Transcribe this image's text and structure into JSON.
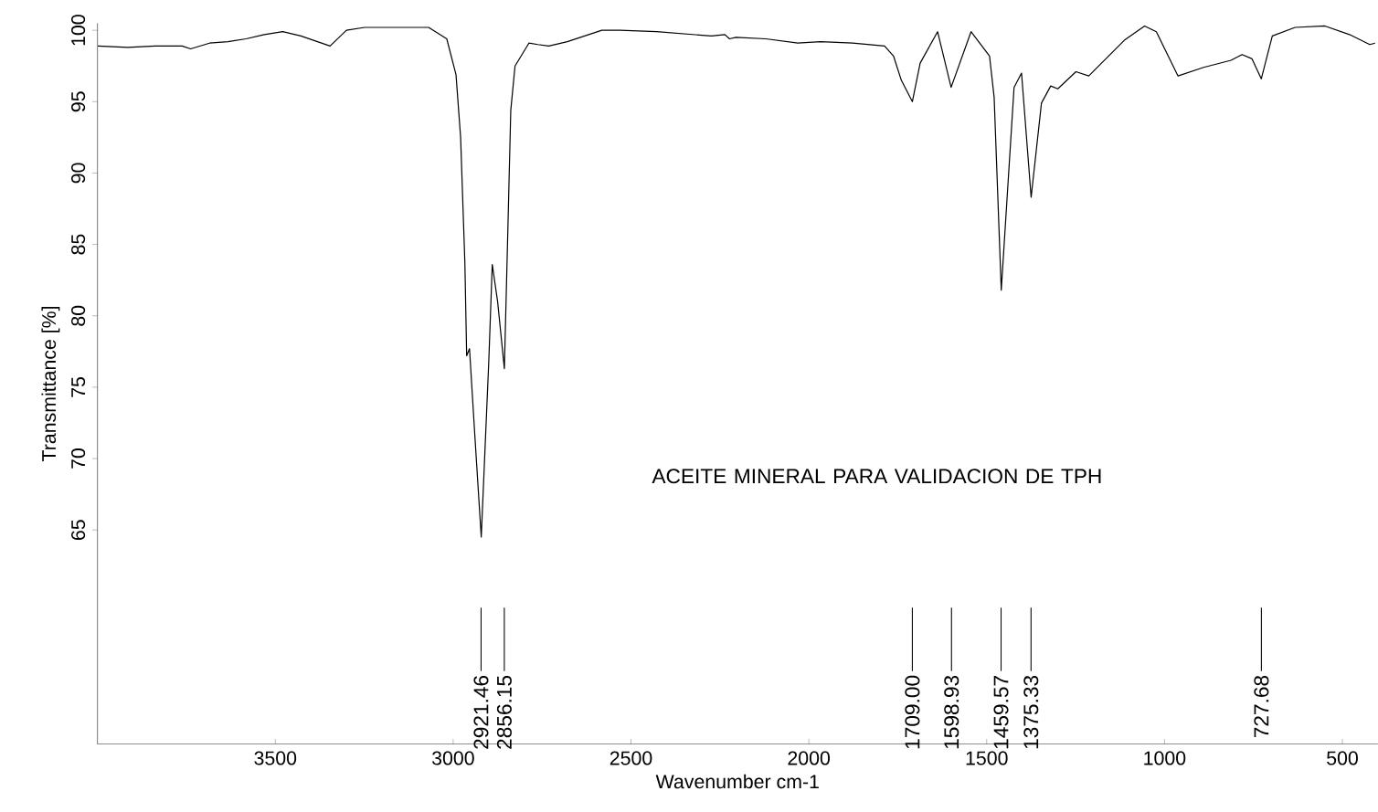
{
  "chart_data": {
    "type": "line",
    "title": "ACEITE MINERAL PARA VALIDACION DE TPH",
    "xlabel": "Wavenumber cm-1",
    "ylabel": "Transmittance [%]",
    "color": "#000000",
    "x": [
      3999,
      3915,
      3838,
      3762,
      3738,
      3685,
      3633,
      3582,
      3531,
      3479,
      3428,
      3346,
      3300,
      3249,
      3146,
      3069,
      3018,
      2992,
      2979,
      2967,
      2962,
      2954,
      2940,
      2921,
      2900,
      2890,
      2875,
      2856,
      2846,
      2838,
      2826,
      2787,
      2762,
      2731,
      2679,
      2582,
      2531,
      2428,
      2274,
      2236,
      2223,
      2205,
      2121,
      2031,
      1967,
      1877,
      1787,
      1762,
      1740,
      1709,
      1687,
      1638,
      1600,
      1544,
      1492,
      1479,
      1459,
      1423,
      1402,
      1375,
      1346,
      1320,
      1300,
      1249,
      1213,
      1113,
      1056,
      1023,
      962,
      890,
      813,
      782,
      754,
      728,
      697,
      633,
      549,
      480,
      423,
      408
    ],
    "values": [
      98.9,
      98.8,
      98.9,
      98.9,
      98.7,
      99.1,
      99.2,
      99.4,
      99.7,
      99.9,
      99.6,
      98.9,
      100.0,
      100.2,
      100.2,
      100.2,
      99.4,
      96.9,
      92.5,
      83.7,
      77.2,
      77.7,
      72.0,
      64.5,
      76.7,
      83.6,
      81.0,
      76.3,
      86.2,
      94.4,
      97.5,
      99.1,
      99.0,
      98.9,
      99.2,
      100.0,
      100.0,
      99.9,
      99.6,
      99.7,
      99.4,
      99.5,
      99.4,
      99.1,
      99.2,
      99.1,
      98.9,
      98.2,
      96.5,
      95.0,
      97.7,
      99.9,
      96.0,
      99.9,
      98.2,
      95.3,
      81.8,
      96.0,
      97.0,
      88.3,
      94.9,
      96.1,
      95.9,
      97.1,
      96.8,
      99.3,
      100.3,
      99.9,
      96.8,
      97.4,
      97.9,
      98.3,
      98.0,
      96.6,
      99.6,
      100.2,
      100.3,
      99.7,
      99.0,
      99.1
    ],
    "xlim": [
      4000,
      400
    ],
    "ylim": [
      50,
      100.5
    ],
    "xticks": [
      3500,
      3000,
      2500,
      2000,
      1500,
      1000,
      500
    ],
    "yticks": [
      65,
      70,
      75,
      80,
      85,
      90,
      95,
      100
    ],
    "ref_lines": [
      {
        "axis": "x",
        "value": 2921.46,
        "label": "2921.46"
      },
      {
        "axis": "x",
        "value": 2856.15,
        "label": "2856.15"
      },
      {
        "axis": "x",
        "value": 1709.0,
        "label": "1709.00"
      },
      {
        "axis": "x",
        "value": 1598.93,
        "label": "1598.93"
      },
      {
        "axis": "x",
        "value": 1459.57,
        "label": "1459.57"
      },
      {
        "axis": "x",
        "value": 1375.33,
        "label": "1375.33"
      },
      {
        "axis": "x",
        "value": 727.68,
        "label": "727.68"
      }
    ]
  }
}
